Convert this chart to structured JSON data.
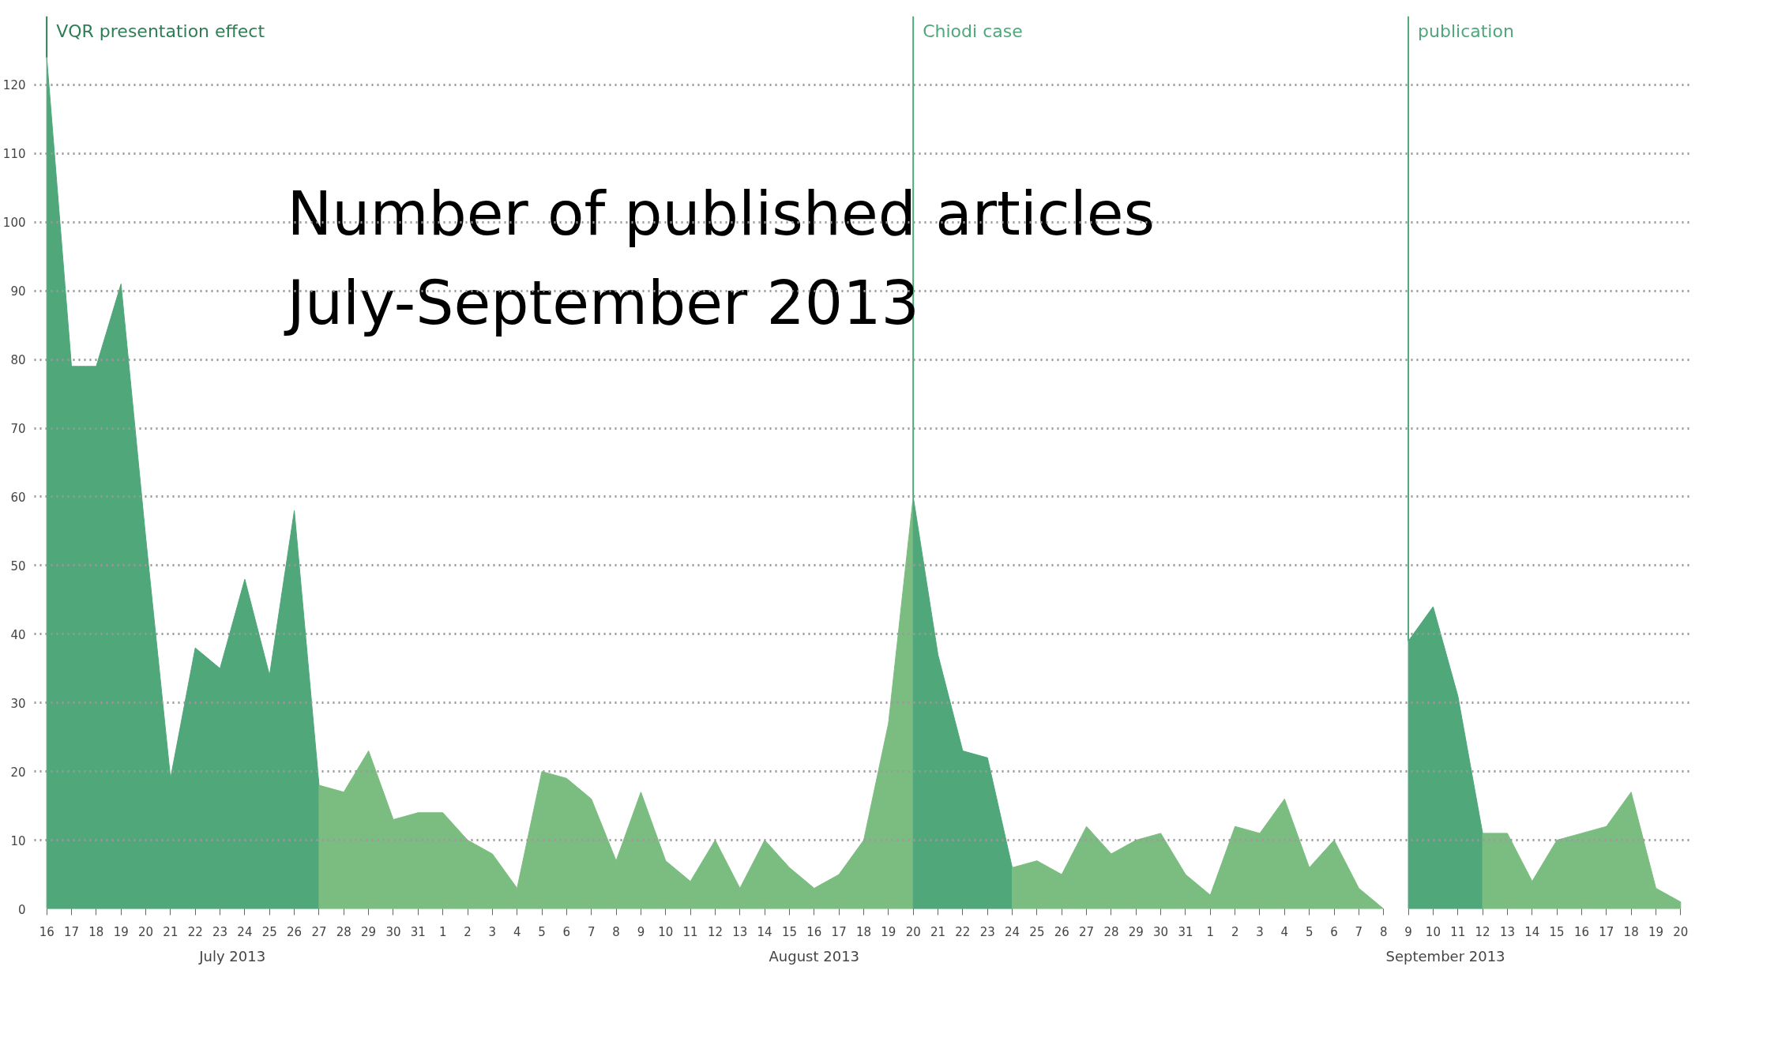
{
  "chart_data": {
    "type": "area",
    "title": "Number of published articles",
    "subtitle": "July-September 2013",
    "series": [
      {
        "color": "#4fa77a",
        "x": [
          "2013-07-16",
          "2013-07-17",
          "2013-07-18",
          "2013-07-19",
          "2013-07-20",
          "2013-07-21",
          "2013-07-22",
          "2013-07-23",
          "2013-07-24",
          "2013-07-25",
          "2013-07-26",
          "2013-07-27"
        ],
        "values": [
          124,
          79,
          79,
          91,
          54,
          19,
          38,
          35,
          48,
          34,
          58,
          18
        ]
      },
      {
        "color": "#7bbd80",
        "x": [
          "2013-07-27",
          "2013-07-28",
          "2013-07-29",
          "2013-07-30",
          "2013-07-31",
          "2013-08-01",
          "2013-08-02",
          "2013-08-03",
          "2013-08-04",
          "2013-08-05",
          "2013-08-06",
          "2013-08-07",
          "2013-08-08",
          "2013-08-09",
          "2013-08-10",
          "2013-08-11",
          "2013-08-12",
          "2013-08-13",
          "2013-08-14",
          "2013-08-15",
          "2013-08-16",
          "2013-08-17",
          "2013-08-18",
          "2013-08-19",
          "2013-08-20"
        ],
        "values": [
          18,
          17,
          23,
          13,
          14,
          14,
          10,
          8,
          3,
          20,
          19,
          16,
          7,
          17,
          7,
          4,
          10,
          3,
          10,
          6,
          3,
          5,
          10,
          27,
          60
        ]
      },
      {
        "color": "#4fa77a",
        "x": [
          "2013-08-20",
          "2013-08-21",
          "2013-08-22",
          "2013-08-23",
          "2013-08-24"
        ],
        "values": [
          60,
          37,
          23,
          22,
          6
        ]
      },
      {
        "color": "#7bbd80",
        "x": [
          "2013-08-24",
          "2013-08-25",
          "2013-08-26",
          "2013-08-27",
          "2013-08-28",
          "2013-08-29",
          "2013-08-30",
          "2013-08-31",
          "2013-09-01",
          "2013-09-02",
          "2013-09-03",
          "2013-09-04",
          "2013-09-05",
          "2013-09-06",
          "2013-09-07",
          "2013-09-08"
        ],
        "values": [
          6,
          7,
          5,
          12,
          8,
          10,
          11,
          5,
          2,
          12,
          11,
          16,
          6,
          10,
          3,
          0
        ]
      },
      {
        "color": "#4fa77a",
        "x": [
          "2013-09-09",
          "2013-09-10",
          "2013-09-11",
          "2013-09-12"
        ],
        "values": [
          39,
          44,
          31,
          11
        ]
      },
      {
        "color": "#7bbd80",
        "x": [
          "2013-09-12",
          "2013-09-13",
          "2013-09-14",
          "2013-09-15",
          "2013-09-16",
          "2013-09-17",
          "2013-09-18",
          "2013-09-19",
          "2013-09-20"
        ],
        "values": [
          11,
          11,
          4,
          10,
          11,
          12,
          17,
          3,
          1
        ]
      }
    ],
    "ylim": [
      0,
      130
    ],
    "yticks": [
      0,
      10,
      20,
      30,
      40,
      50,
      60,
      70,
      80,
      90,
      100,
      110,
      120
    ],
    "xlim": [
      "2013-07-16",
      "2013-09-20"
    ],
    "xticks": [
      {
        "value": "2013-07-16",
        "label": "16"
      },
      {
        "value": "2013-07-17",
        "label": "17"
      },
      {
        "value": "2013-07-18",
        "label": "18"
      },
      {
        "value": "2013-07-19",
        "label": "19"
      },
      {
        "value": "2013-07-20",
        "label": "20"
      },
      {
        "value": "2013-07-21",
        "label": "21"
      },
      {
        "value": "2013-07-22",
        "label": "22"
      },
      {
        "value": "2013-07-23",
        "label": "23"
      },
      {
        "value": "2013-07-24",
        "label": "24"
      },
      {
        "value": "2013-07-25",
        "label": "25"
      },
      {
        "value": "2013-07-26",
        "label": "26"
      },
      {
        "value": "2013-07-27",
        "label": "27"
      },
      {
        "value": "2013-07-28",
        "label": "28"
      },
      {
        "value": "2013-07-29",
        "label": "29"
      },
      {
        "value": "2013-07-30",
        "label": "30"
      },
      {
        "value": "2013-07-31",
        "label": "31"
      },
      {
        "value": "2013-08-01",
        "label": "1"
      },
      {
        "value": "2013-08-02",
        "label": "2"
      },
      {
        "value": "2013-08-03",
        "label": "3"
      },
      {
        "value": "2013-08-04",
        "label": "4"
      },
      {
        "value": "2013-08-05",
        "label": "5"
      },
      {
        "value": "2013-08-06",
        "label": "6"
      },
      {
        "value": "2013-08-07",
        "label": "7"
      },
      {
        "value": "2013-08-08",
        "label": "8"
      },
      {
        "value": "2013-08-09",
        "label": "9"
      },
      {
        "value": "2013-08-10",
        "label": "10"
      },
      {
        "value": "2013-08-11",
        "label": "11"
      },
      {
        "value": "2013-08-12",
        "label": "12"
      },
      {
        "value": "2013-08-13",
        "label": "13"
      },
      {
        "value": "2013-08-14",
        "label": "14"
      },
      {
        "value": "2013-08-15",
        "label": "15"
      },
      {
        "value": "2013-08-16",
        "label": "16"
      },
      {
        "value": "2013-08-17",
        "label": "17"
      },
      {
        "value": "2013-08-18",
        "label": "18"
      },
      {
        "value": "2013-08-19",
        "label": "19"
      },
      {
        "value": "2013-08-20",
        "label": "20"
      },
      {
        "value": "2013-08-21",
        "label": "21"
      },
      {
        "value": "2013-08-22",
        "label": "22"
      },
      {
        "value": "2013-08-23",
        "label": "23"
      },
      {
        "value": "2013-08-24",
        "label": "24"
      },
      {
        "value": "2013-08-25",
        "label": "25"
      },
      {
        "value": "2013-08-26",
        "label": "26"
      },
      {
        "value": "2013-08-27",
        "label": "27"
      },
      {
        "value": "2013-08-28",
        "label": "28"
      },
      {
        "value": "2013-08-29",
        "label": "29"
      },
      {
        "value": "2013-08-30",
        "label": "30"
      },
      {
        "value": "2013-08-31",
        "label": "31"
      },
      {
        "value": "2013-09-01",
        "label": "1"
      },
      {
        "value": "2013-09-02",
        "label": "2"
      },
      {
        "value": "2013-09-03",
        "label": "3"
      },
      {
        "value": "2013-09-04",
        "label": "4"
      },
      {
        "value": "2013-09-05",
        "label": "5"
      },
      {
        "value": "2013-09-06",
        "label": "6"
      },
      {
        "value": "2013-09-07",
        "label": "7"
      },
      {
        "value": "2013-09-08",
        "label": "8"
      },
      {
        "value": "2013-09-09",
        "label": "9"
      },
      {
        "value": "2013-09-10",
        "label": "10"
      },
      {
        "value": "2013-09-11",
        "label": "11"
      },
      {
        "value": "2013-09-12",
        "label": "12"
      },
      {
        "value": "2013-09-13",
        "label": "13"
      },
      {
        "value": "2013-09-14",
        "label": "14"
      },
      {
        "value": "2013-09-15",
        "label": "15"
      },
      {
        "value": "2013-09-16",
        "label": "16"
      },
      {
        "value": "2013-09-17",
        "label": "17"
      },
      {
        "value": "2013-09-18",
        "label": "18"
      },
      {
        "value": "2013-09-19",
        "label": "19"
      },
      {
        "value": "2013-09-20",
        "label": "20"
      }
    ],
    "ref_lines": [
      {
        "axis": "x",
        "value": "2013-07-16",
        "label": "VQR presentation effect",
        "color": "#2e7d55"
      },
      {
        "axis": "x",
        "value": "2013-08-20",
        "label": "Chiodi case",
        "color": "#4fa77a"
      },
      {
        "axis": "x",
        "value": "2013-09-09",
        "label": "publication",
        "color": "#4fa77a"
      }
    ],
    "annotations": [
      "July 2013",
      "August 2013",
      "September 2013"
    ],
    "grid": "y"
  }
}
